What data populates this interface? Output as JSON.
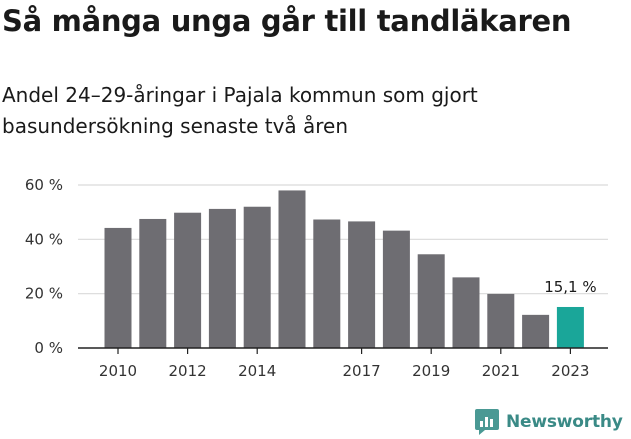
{
  "title": "Så många unga går till tandläkaren",
  "subtitle_lines": [
    "Andel 24–29-åringar i Pajala kommun som gjort",
    "basundersökning senaste två åren"
  ],
  "brand": {
    "name": "Newsworthy",
    "color": "#3a8a86"
  },
  "colors": {
    "bar": "#6e6d72",
    "highlight": "#1aa699",
    "grid": "#d9d9d9"
  },
  "chart_data": {
    "type": "bar",
    "x": [
      2010,
      2011,
      2012,
      2013,
      2014,
      2015,
      2016,
      2017,
      2018,
      2019,
      2020,
      2021,
      2022,
      2023
    ],
    "values": [
      44.2,
      47.5,
      49.8,
      51.2,
      52.0,
      58.0,
      47.3,
      46.6,
      43.2,
      34.5,
      26.0,
      19.9,
      12.2,
      15.1
    ],
    "xtick_labels": [
      {
        "x": 2010,
        "label": "2010"
      },
      {
        "x": 2012,
        "label": "2012"
      },
      {
        "x": 2014,
        "label": "2014"
      },
      {
        "x": 2017,
        "label": "2017"
      },
      {
        "x": 2019,
        "label": "2019"
      },
      {
        "x": 2021,
        "label": "2021"
      },
      {
        "x": 2023,
        "label": "2023"
      }
    ],
    "ytick_labels": [
      {
        "value": 0,
        "label": "0 %"
      },
      {
        "value": 20,
        "label": "20 %"
      },
      {
        "value": 40,
        "label": "40 %"
      },
      {
        "value": 60,
        "label": "60 %"
      }
    ],
    "ylim": [
      0,
      60
    ],
    "grid": true,
    "highlight": {
      "x": 2023,
      "label": "15,1 %"
    },
    "xlabel": "",
    "ylabel": ""
  }
}
